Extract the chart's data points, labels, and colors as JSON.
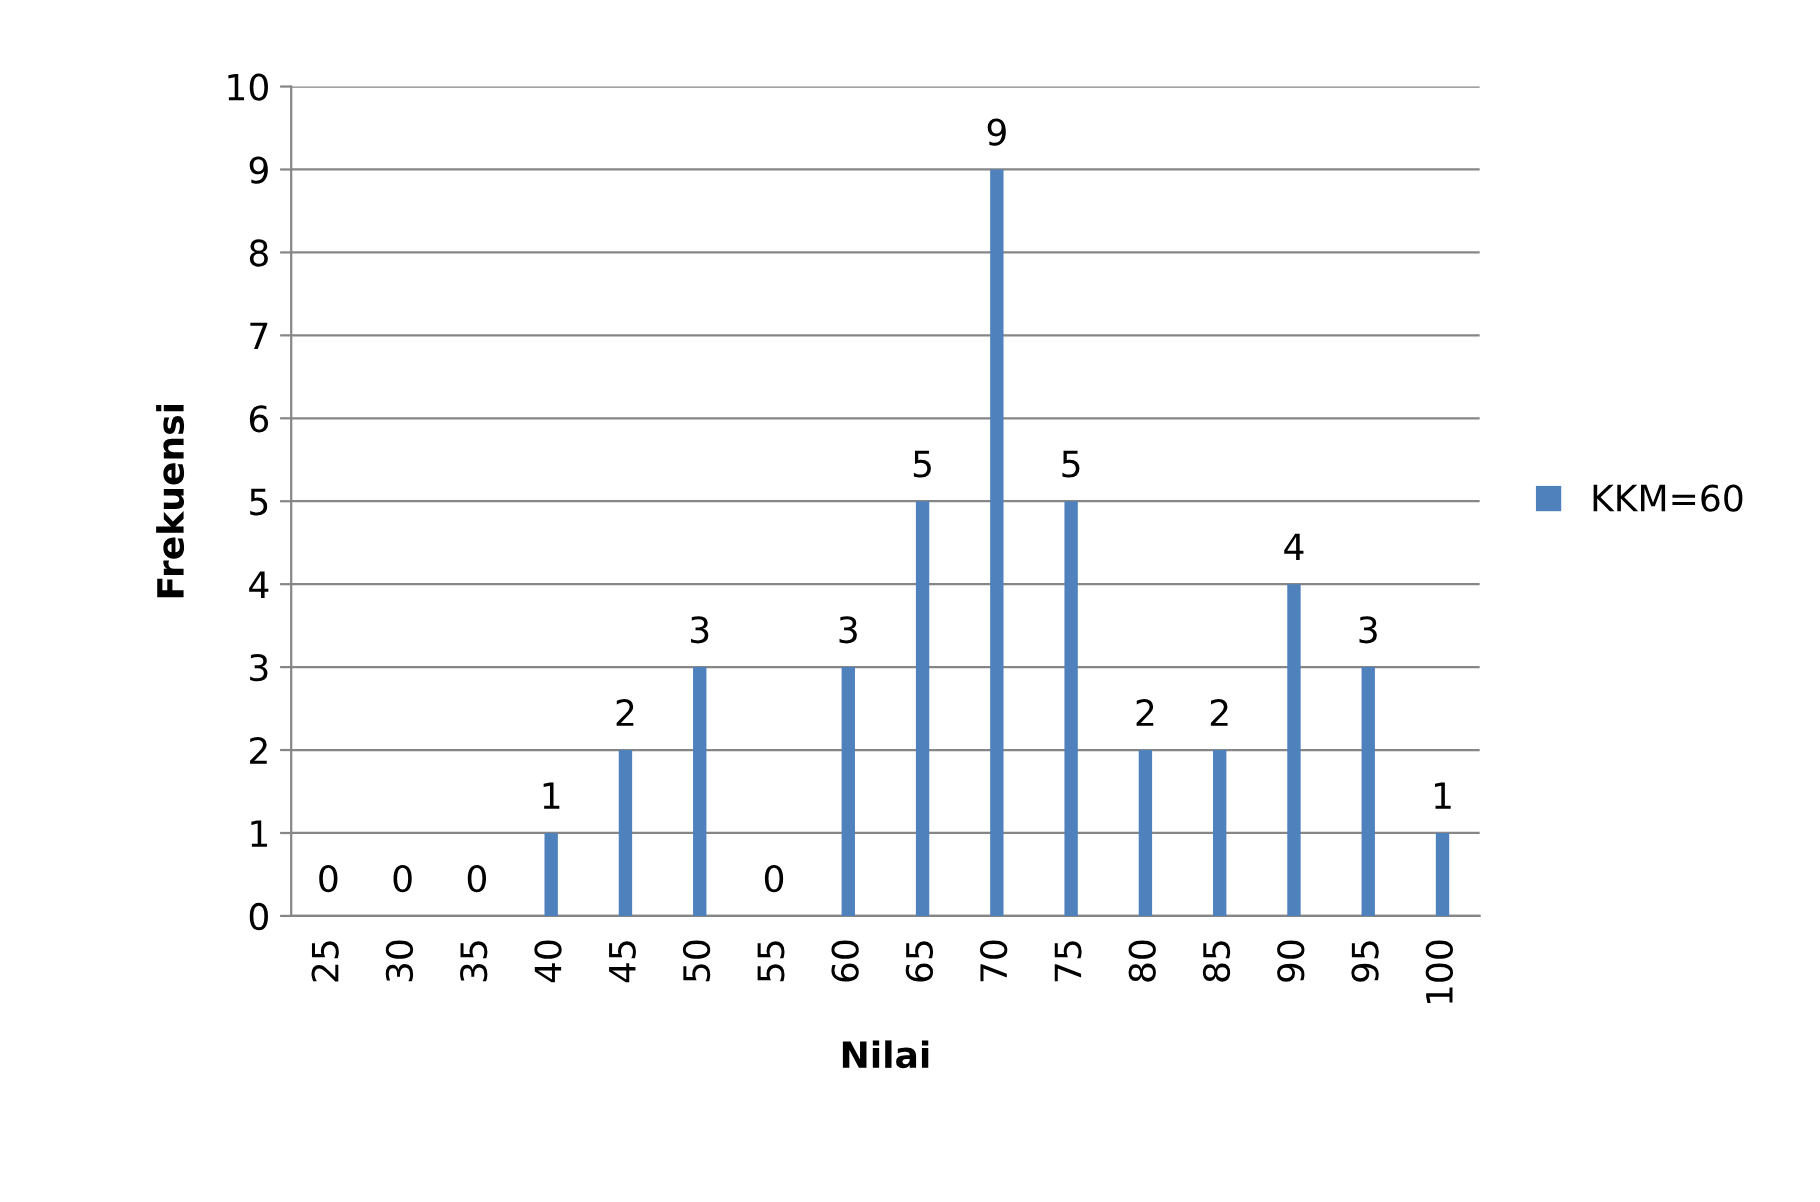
{
  "chart_data": {
    "type": "bar",
    "xlabel": "Nilai",
    "ylabel": "Frekuensi",
    "categories": [
      "25",
      "30",
      "35",
      "40",
      "45",
      "50",
      "55",
      "60",
      "65",
      "70",
      "75",
      "80",
      "85",
      "90",
      "95",
      "100"
    ],
    "series": [
      {
        "name": "KKM=60",
        "color": "#4f81bd",
        "values": [
          0,
          0,
          0,
          1,
          2,
          3,
          0,
          3,
          5,
          9,
          5,
          2,
          2,
          4,
          3,
          1
        ]
      }
    ],
    "ylim": [
      0,
      10
    ],
    "yticks": [
      0,
      1,
      2,
      3,
      4,
      5,
      6,
      7,
      8,
      9,
      10
    ],
    "grid": "y",
    "legend": "right",
    "data_labels": true
  }
}
